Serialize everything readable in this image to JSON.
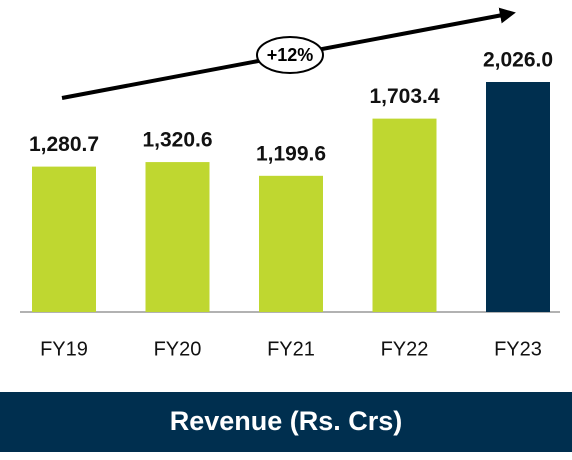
{
  "chart_data": {
    "type": "bar",
    "title": "Revenue (Rs. Crs)",
    "categories": [
      "FY19",
      "FY20",
      "FY21",
      "FY22",
      "FY23"
    ],
    "values": [
      1280.7,
      1320.6,
      1199.6,
      1703.4,
      2026.0
    ],
    "value_labels": [
      "1,280.7",
      "1,320.6",
      "1,199.6",
      "1,703.4",
      "2,026.0"
    ],
    "colors": [
      "#bfd730",
      "#bfd730",
      "#bfd730",
      "#bfd730",
      "#002f4f"
    ],
    "annotation": "+12%"
  }
}
